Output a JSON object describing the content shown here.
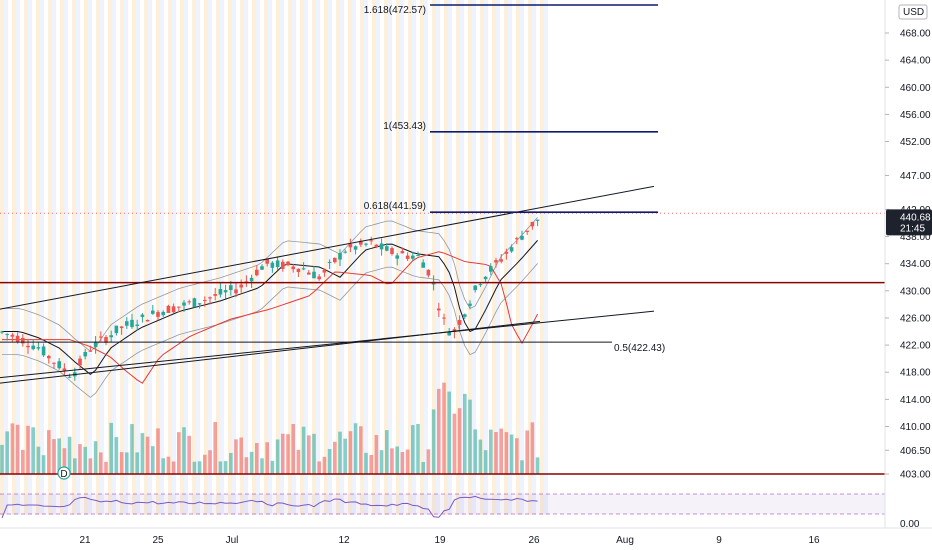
{
  "chart_data": {
    "type": "candlestick",
    "currency": "USD",
    "last_price": "440.68",
    "countdown": "21:45",
    "y_ticks": [
      "468.00",
      "464.00",
      "460.00",
      "456.00",
      "452.00",
      "447.00",
      "442.00",
      "438.00",
      "434.00",
      "430.00",
      "426.00",
      "422.00",
      "418.00",
      "414.00",
      "410.00",
      "406.50",
      "403.00"
    ],
    "y_tick_values": [
      468,
      464,
      460,
      456,
      452,
      447,
      442,
      438,
      434,
      430,
      426,
      422,
      418,
      414,
      410,
      406.5,
      403
    ],
    "rsi_ticks": [
      "0.00"
    ],
    "x_ticks": [
      "21",
      "25",
      "Jul",
      "12",
      "19",
      "26",
      "Aug",
      "9",
      "16"
    ],
    "fib_levels": [
      {
        "label": "1.618(472.57)",
        "price": 472.57
      },
      {
        "label": "1(453.43)",
        "price": 453.43
      },
      {
        "label": "0.618(441.59)",
        "price": 441.59
      },
      {
        "label": "0.5(422.43)",
        "price": 422.43
      }
    ],
    "horizontal_levels": [
      431.2,
      403.0
    ],
    "event_marker": "D",
    "colors": {
      "up": "#26a69a",
      "down": "#ef5350",
      "ma_red": "#e53935",
      "fib_line": "#0d1b6e",
      "level_line": "#8b0000",
      "trend_line": "#131722",
      "price_tag": "#1e222d"
    }
  }
}
